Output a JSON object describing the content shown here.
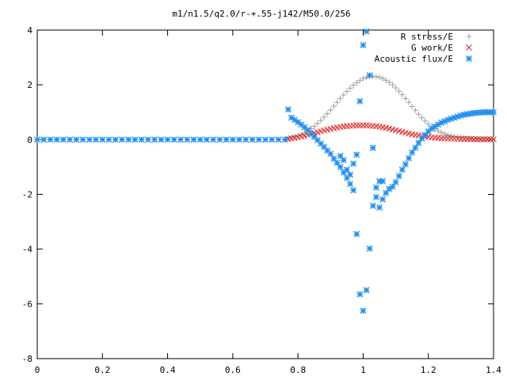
{
  "chart_data": {
    "type": "scatter",
    "title": "m1/n1.5/q2.0/r-+.55-j142/M50.0/256",
    "xlabel": "",
    "ylabel": "",
    "xlim": [
      0,
      1.4
    ],
    "ylim": [
      -8,
      4
    ],
    "xticks": [
      "0",
      "0.2",
      "0.4",
      "0.6",
      "0.8",
      "1",
      "1.2",
      "1.4"
    ],
    "yticks": [
      "4",
      "2",
      "0",
      "-2",
      "-4",
      "-6",
      "-8"
    ],
    "grid": false,
    "legend_position": "top-right",
    "series": [
      {
        "name": "R stress/E",
        "marker": "+",
        "color": "#a0a0a0",
        "x": [
          0.77,
          0.78,
          0.79,
          0.8,
          0.81,
          0.82,
          0.83,
          0.84,
          0.85,
          0.86,
          0.87,
          0.88,
          0.89,
          0.9,
          0.91,
          0.92,
          0.93,
          0.94,
          0.95,
          0.96,
          0.97,
          0.98,
          0.99,
          1.0,
          1.01,
          1.02,
          1.03,
          1.04,
          1.05,
          1.06,
          1.07,
          1.08,
          1.09,
          1.1,
          1.11,
          1.12,
          1.13,
          1.14,
          1.15,
          1.16,
          1.17,
          1.18,
          1.19,
          1.2,
          1.21,
          1.22,
          1.23,
          1.24,
          1.25,
          1.26,
          1.27,
          1.28,
          1.29,
          1.3,
          1.31,
          1.32,
          1.33,
          1.34,
          1.35,
          1.36,
          1.37,
          1.38,
          1.39,
          1.4
        ],
        "y": [
          0.06,
          0.08,
          0.11,
          0.15,
          0.19,
          0.25,
          0.32,
          0.4,
          0.49,
          0.59,
          0.7,
          0.82,
          0.95,
          1.08,
          1.22,
          1.36,
          1.5,
          1.63,
          1.76,
          1.88,
          1.99,
          2.08,
          2.16,
          2.23,
          2.27,
          2.3,
          2.31,
          2.3,
          2.28,
          2.23,
          2.17,
          2.09,
          2.0,
          1.89,
          1.77,
          1.64,
          1.5,
          1.36,
          1.21,
          1.07,
          0.93,
          0.8,
          0.68,
          0.57,
          0.47,
          0.39,
          0.32,
          0.26,
          0.21,
          0.17,
          0.14,
          0.11,
          0.09,
          0.07,
          0.06,
          0.05,
          0.04,
          0.03,
          0.03,
          0.02,
          0.02,
          0.02,
          0.01,
          0.01
        ]
      },
      {
        "name": "G work/E",
        "marker": "x",
        "color": "#e02020",
        "x": [
          0.77,
          0.78,
          0.79,
          0.8,
          0.81,
          0.82,
          0.83,
          0.84,
          0.85,
          0.86,
          0.87,
          0.88,
          0.89,
          0.9,
          0.91,
          0.92,
          0.93,
          0.94,
          0.95,
          0.96,
          0.97,
          0.98,
          0.99,
          1.0,
          1.01,
          1.02,
          1.03,
          1.04,
          1.05,
          1.06,
          1.07,
          1.08,
          1.09,
          1.1,
          1.11,
          1.12,
          1.13,
          1.14,
          1.15,
          1.16,
          1.17,
          1.18,
          1.19,
          1.2,
          1.21,
          1.22,
          1.23,
          1.24,
          1.25,
          1.26,
          1.27,
          1.28,
          1.29,
          1.3,
          1.31,
          1.32,
          1.33,
          1.34,
          1.35,
          1.36,
          1.37,
          1.38,
          1.39,
          1.4
        ],
        "y": [
          0.02,
          0.04,
          0.06,
          0.08,
          0.11,
          0.14,
          0.17,
          0.2,
          0.24,
          0.27,
          0.3,
          0.33,
          0.36,
          0.39,
          0.42,
          0.44,
          0.46,
          0.48,
          0.49,
          0.5,
          0.51,
          0.52,
          0.52,
          0.52,
          0.52,
          0.51,
          0.5,
          0.49,
          0.47,
          0.45,
          0.43,
          0.4,
          0.37,
          0.34,
          0.31,
          0.28,
          0.25,
          0.22,
          0.19,
          0.17,
          0.15,
          0.13,
          0.11,
          0.1,
          0.08,
          0.07,
          0.06,
          0.05,
          0.05,
          0.04,
          0.04,
          0.03,
          0.03,
          0.02,
          0.02,
          0.02,
          0.02,
          0.01,
          0.01,
          0.01,
          0.01,
          0.01,
          0.01,
          0.01
        ]
      },
      {
        "name": "Acoustic flux/E",
        "marker": "*",
        "color": "#2090f0",
        "x": [
          0.0,
          0.02,
          0.04,
          0.06,
          0.08,
          0.1,
          0.12,
          0.14,
          0.16,
          0.18,
          0.2,
          0.22,
          0.24,
          0.26,
          0.28,
          0.3,
          0.32,
          0.34,
          0.36,
          0.38,
          0.4,
          0.42,
          0.44,
          0.46,
          0.48,
          0.5,
          0.52,
          0.54,
          0.56,
          0.58,
          0.6,
          0.62,
          0.64,
          0.66,
          0.68,
          0.7,
          0.72,
          0.74,
          0.76,
          0.77,
          0.78,
          0.79,
          0.8,
          0.81,
          0.82,
          0.83,
          0.84,
          0.85,
          0.86,
          0.87,
          0.88,
          0.89,
          0.9,
          0.91,
          0.92,
          0.93,
          0.94,
          0.95,
          0.96,
          0.97,
          0.98,
          0.99,
          1.0,
          1.01,
          1.02,
          1.03,
          1.04,
          1.05,
          1.06,
          1.07,
          1.08,
          1.09,
          1.1,
          1.11,
          1.12,
          1.13,
          1.14,
          1.15,
          1.16,
          1.17,
          1.18,
          1.19,
          1.2,
          1.21,
          1.22,
          1.23,
          1.24,
          1.25,
          1.26,
          1.27,
          1.28,
          1.29,
          1.3,
          1.31,
          1.32,
          1.33,
          1.34,
          1.35,
          1.36,
          1.37,
          1.38,
          1.39,
          1.4,
          0.93,
          0.94,
          0.95,
          0.96,
          0.97,
          0.98,
          0.99,
          1.0,
          1.01,
          1.02,
          1.03,
          1.04,
          1.05,
          1.06
        ],
        "y": [
          0,
          0,
          0,
          0,
          0,
          0,
          0,
          0,
          0,
          0,
          0,
          0,
          0,
          0,
          0,
          0,
          0,
          0,
          0,
          0,
          0,
          0,
          0,
          0,
          0,
          0,
          0,
          0,
          0,
          0,
          0,
          0,
          0,
          0,
          0,
          0,
          0,
          0,
          0,
          1.1,
          0.8,
          0.72,
          0.64,
          0.55,
          0.45,
          0.35,
          0.22,
          0.1,
          -0.02,
          -0.15,
          -0.27,
          -0.4,
          -0.52,
          -0.7,
          -0.85,
          -1.0,
          -1.2,
          -1.4,
          -1.62,
          -1.85,
          -3.45,
          -5.65,
          -6.25,
          -5.5,
          -3.98,
          -2.42,
          -2.1,
          -2.48,
          -2.18,
          -1.95,
          -1.8,
          -1.72,
          -1.55,
          -1.33,
          -1.1,
          -0.9,
          -0.68,
          -0.47,
          -0.3,
          -0.12,
          0.04,
          0.17,
          0.3,
          0.4,
          0.48,
          0.55,
          0.62,
          0.67,
          0.72,
          0.76,
          0.8,
          0.84,
          0.88,
          0.91,
          0.93,
          0.95,
          0.97,
          0.98,
          0.99,
          1.0,
          1.0,
          1.0,
          1.0,
          -0.6,
          -0.75,
          -1.1,
          -1.28,
          -0.88,
          -0.55,
          1.4,
          3.45,
          3.95,
          2.35,
          -0.3,
          -1.75,
          -1.52,
          -1.52
        ]
      }
    ]
  }
}
